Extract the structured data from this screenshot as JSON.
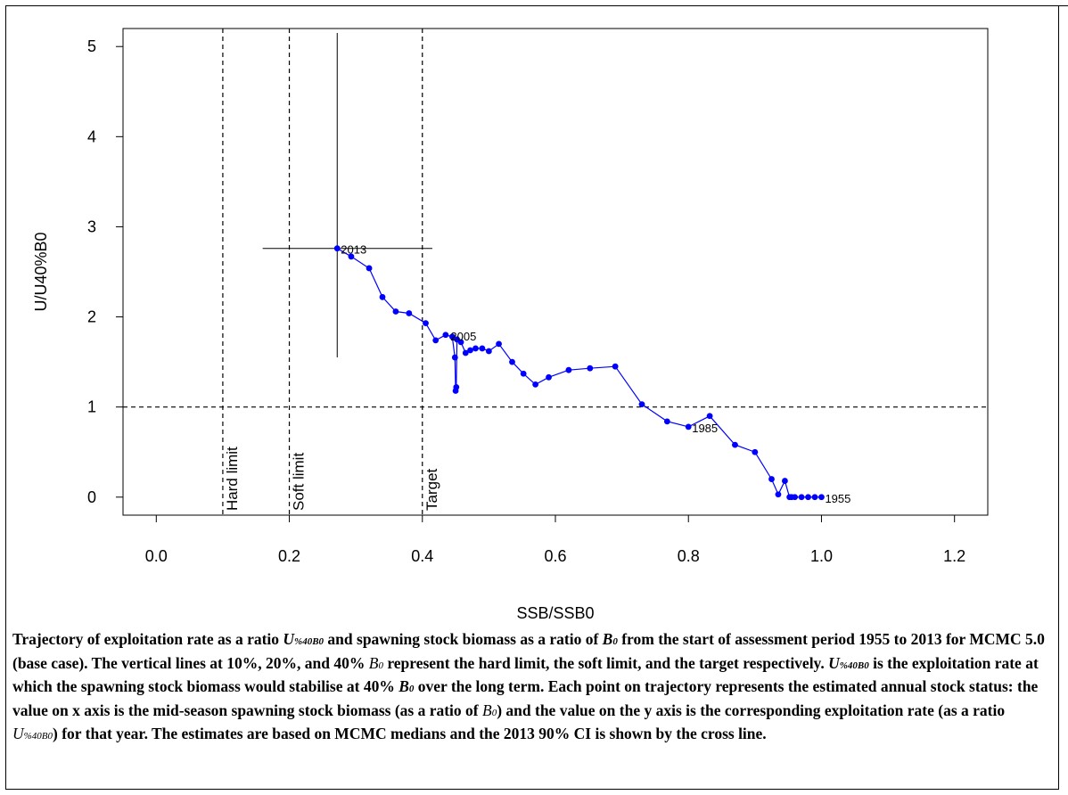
{
  "chart_data": {
    "type": "scatter",
    "xlabel": "SSB/SSB0",
    "ylabel": "U/U40%B0",
    "xlim": [
      -0.05,
      1.25
    ],
    "ylim": [
      -0.2,
      5.2
    ],
    "x_ticks": [
      "0.0",
      "0.2",
      "0.4",
      "0.6",
      "0.8",
      "1.0",
      "1.2"
    ],
    "y_ticks": [
      "0",
      "1",
      "2",
      "3",
      "4",
      "5"
    ],
    "reference_lines": {
      "vertical": [
        {
          "x": 0.1,
          "label": "Hard limit"
        },
        {
          "x": 0.2,
          "label": "Soft limit"
        },
        {
          "x": 0.4,
          "label": "Target"
        }
      ],
      "horizontal": [
        {
          "y": 1
        }
      ]
    },
    "ci_2013": {
      "x_range": [
        0.16,
        0.415
      ],
      "y_range": [
        1.55,
        5.15
      ],
      "center": [
        0.272,
        2.76
      ]
    },
    "series": [
      {
        "color": "#0000ff",
        "x": [
          1.0,
          0.99,
          0.98,
          0.97,
          0.96,
          0.955,
          0.952,
          0.945,
          0.935,
          0.925,
          0.9,
          0.87,
          0.832,
          0.8,
          0.768,
          0.73,
          0.69,
          0.652,
          0.62,
          0.59,
          0.57,
          0.552,
          0.535,
          0.515,
          0.5,
          0.49,
          0.48,
          0.472,
          0.465,
          0.458,
          0.452,
          0.451,
          0.45,
          0.449,
          0.445,
          0.435,
          0.42,
          0.405,
          0.38,
          0.36,
          0.34,
          0.32,
          0.293,
          0.272
        ],
        "y": [
          0.0,
          0.0,
          0.0,
          0.0,
          0.0,
          0.0,
          0.0,
          0.18,
          0.03,
          0.2,
          0.5,
          0.58,
          0.9,
          0.78,
          0.84,
          1.03,
          1.45,
          1.43,
          1.41,
          1.33,
          1.25,
          1.37,
          1.5,
          1.7,
          1.62,
          1.65,
          1.65,
          1.63,
          1.6,
          1.72,
          1.75,
          1.22,
          1.18,
          1.55,
          1.78,
          1.8,
          1.74,
          1.93,
          2.04,
          2.06,
          2.22,
          2.54,
          2.67,
          2.76
        ]
      }
    ],
    "point_labels": [
      {
        "x": 0.272,
        "y": 2.76,
        "text": "2013"
      },
      {
        "x": 0.437,
        "y": 1.8,
        "text": "2005"
      },
      {
        "x": 0.8,
        "y": 0.78,
        "text": "1985"
      },
      {
        "x": 1.0,
        "y": 0.0,
        "text": "1955"
      }
    ]
  },
  "caption": {
    "p1": "Trajectory of exploitation rate as a ratio ",
    "u_sym": "U",
    "u_sub": "%40B0",
    "p2": " and spawning stock biomass as a ratio of ",
    "b_sym": "B",
    "b_sub": "0",
    "p3": " from the start of assessment period 1955 to 2013 for MCMC 5.0 (base case). The vertical lines at 10%, 20%, and 40% ",
    "b2_sym": "B",
    "b2_sub": "0",
    "p4": " represent the hard limit, the soft limit, and the target respectively. ",
    "u2_sym": "U",
    "u2_sub": "%40B0",
    "p5": " is the exploitation rate at which the spawning stock biomass would stabilise at 40% ",
    "b3_sym": "B",
    "b3_sub": "0",
    "p6": " over the long term. Each point on trajectory represents the estimated annual stock status: the value on x axis is the mid-season spawning stock biomass (as a ratio of ",
    "b4_sym": "B",
    "b4_sub": "0",
    "p7": ") and the value on the y axis is the corresponding exploitation rate (as a ratio ",
    "u3_sym": "U",
    "u3_sub": "%40B0",
    "p8": ") for that year.  The estimates are based on MCMC medians and the 2013 90% CI is shown by the cross line."
  }
}
